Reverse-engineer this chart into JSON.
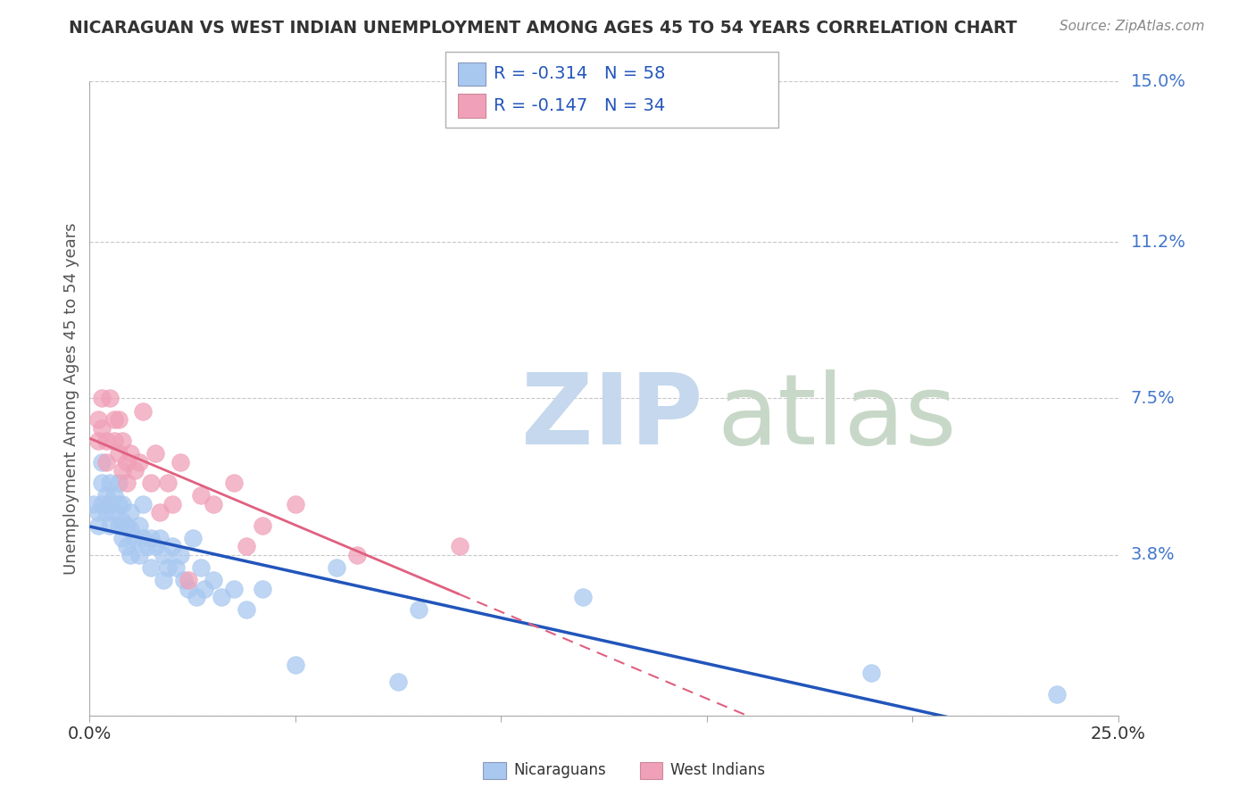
{
  "title": "NICARAGUAN VS WEST INDIAN UNEMPLOYMENT AMONG AGES 45 TO 54 YEARS CORRELATION CHART",
  "source": "Source: ZipAtlas.com",
  "ylabel": "Unemployment Among Ages 45 to 54 years",
  "xlim": [
    0.0,
    0.25
  ],
  "ylim": [
    0.0,
    0.15
  ],
  "ytick_vals": [
    0.0,
    0.038,
    0.075,
    0.112,
    0.15
  ],
  "ytick_labels": [
    "",
    "3.8%",
    "7.5%",
    "11.2%",
    "15.0%"
  ],
  "background_color": "#ffffff",
  "grid_color": "#c8c8c8",
  "nicaraguan_color": "#A8C8F0",
  "west_indian_color": "#F0A0B8",
  "trend_nicaraguan_color": "#2255BB",
  "trend_west_indian_color": "#E06080",
  "legend_R_nicaraguan": "R = -0.314",
  "legend_N_nicaraguan": "N = 58",
  "legend_R_west_indian": "R = -0.147",
  "legend_N_west_indian": "N = 34",
  "nicaraguan_x": [
    0.001,
    0.002,
    0.002,
    0.003,
    0.003,
    0.003,
    0.004,
    0.004,
    0.005,
    0.005,
    0.005,
    0.006,
    0.006,
    0.007,
    0.007,
    0.007,
    0.008,
    0.008,
    0.008,
    0.009,
    0.009,
    0.01,
    0.01,
    0.01,
    0.011,
    0.012,
    0.012,
    0.013,
    0.013,
    0.014,
    0.015,
    0.015,
    0.016,
    0.017,
    0.018,
    0.018,
    0.019,
    0.02,
    0.021,
    0.022,
    0.023,
    0.024,
    0.025,
    0.026,
    0.027,
    0.028,
    0.03,
    0.032,
    0.035,
    0.038,
    0.042,
    0.05,
    0.06,
    0.075,
    0.08,
    0.12,
    0.19,
    0.235
  ],
  "nicaraguan_y": [
    0.05,
    0.048,
    0.045,
    0.06,
    0.055,
    0.05,
    0.052,
    0.048,
    0.055,
    0.05,
    0.045,
    0.052,
    0.048,
    0.055,
    0.05,
    0.045,
    0.05,
    0.046,
    0.042,
    0.045,
    0.04,
    0.048,
    0.044,
    0.038,
    0.042,
    0.045,
    0.038,
    0.05,
    0.042,
    0.04,
    0.042,
    0.035,
    0.04,
    0.042,
    0.038,
    0.032,
    0.035,
    0.04,
    0.035,
    0.038,
    0.032,
    0.03,
    0.042,
    0.028,
    0.035,
    0.03,
    0.032,
    0.028,
    0.03,
    0.025,
    0.03,
    0.012,
    0.035,
    0.008,
    0.025,
    0.028,
    0.01,
    0.005
  ],
  "west_indian_x": [
    0.002,
    0.002,
    0.003,
    0.003,
    0.004,
    0.004,
    0.005,
    0.006,
    0.006,
    0.007,
    0.007,
    0.008,
    0.008,
    0.009,
    0.009,
    0.01,
    0.011,
    0.012,
    0.013,
    0.015,
    0.016,
    0.017,
    0.019,
    0.02,
    0.022,
    0.024,
    0.027,
    0.03,
    0.035,
    0.038,
    0.042,
    0.05,
    0.065,
    0.09
  ],
  "west_indian_y": [
    0.065,
    0.07,
    0.075,
    0.068,
    0.065,
    0.06,
    0.075,
    0.07,
    0.065,
    0.07,
    0.062,
    0.065,
    0.058,
    0.06,
    0.055,
    0.062,
    0.058,
    0.06,
    0.072,
    0.055,
    0.062,
    0.048,
    0.055,
    0.05,
    0.06,
    0.032,
    0.052,
    0.05,
    0.055,
    0.04,
    0.045,
    0.05,
    0.038,
    0.04
  ]
}
